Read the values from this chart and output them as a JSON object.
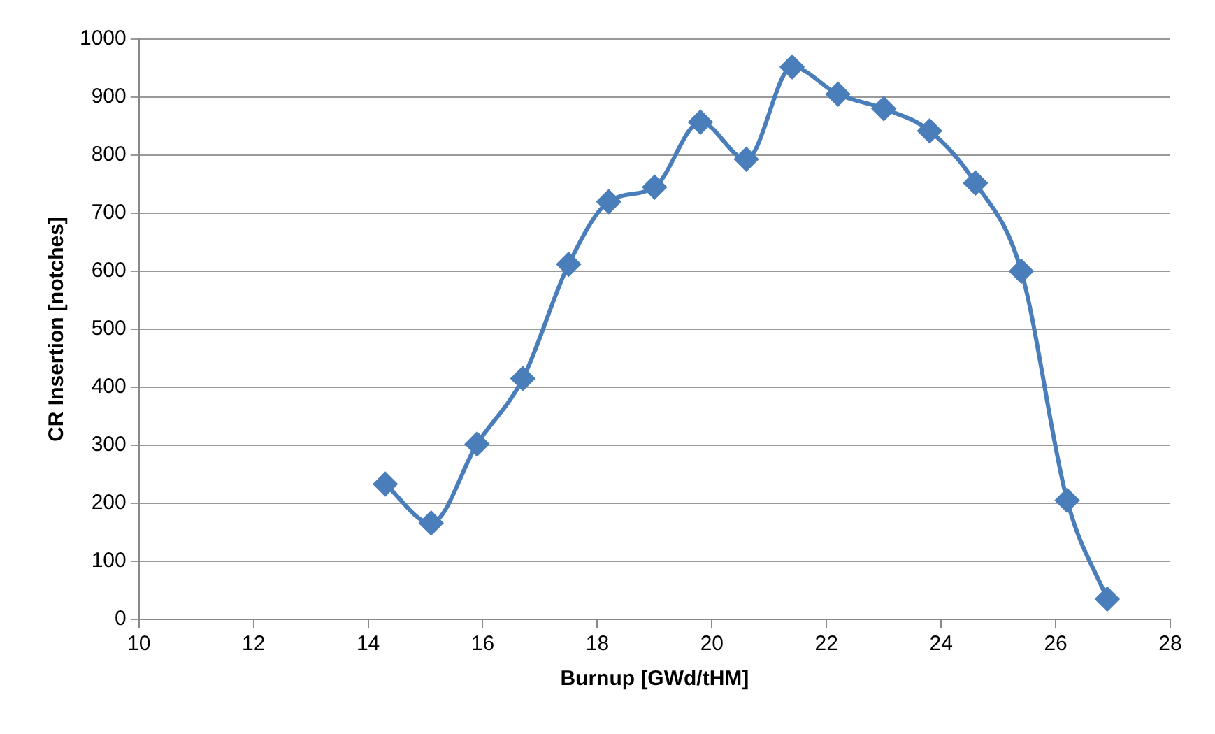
{
  "chart_data": {
    "type": "line",
    "xlabel": "Burnup [GWd/tHM]",
    "ylabel": "CR Insertion [notches]",
    "x": [
      14.3,
      15.1,
      15.9,
      16.7,
      17.5,
      18.2,
      19.0,
      19.8,
      20.6,
      21.4,
      22.2,
      23.0,
      23.8,
      24.6,
      25.4,
      26.2,
      26.9
    ],
    "series": [
      {
        "color": "#4a7ebb",
        "values": [
          233,
          166,
          302,
          415,
          612,
          720,
          745,
          857,
          793,
          952,
          905,
          880,
          842,
          752,
          600,
          205,
          35
        ]
      }
    ],
    "xlim": [
      10,
      28
    ],
    "xticks": [
      10,
      12,
      14,
      16,
      18,
      20,
      22,
      24,
      26,
      28
    ],
    "ylim": [
      0,
      1000
    ],
    "yticks": [
      0,
      100,
      200,
      300,
      400,
      500,
      600,
      700,
      800,
      900,
      1000
    ],
    "grid": "y",
    "legend": false,
    "marker": "diamond",
    "line_style": "solid"
  }
}
